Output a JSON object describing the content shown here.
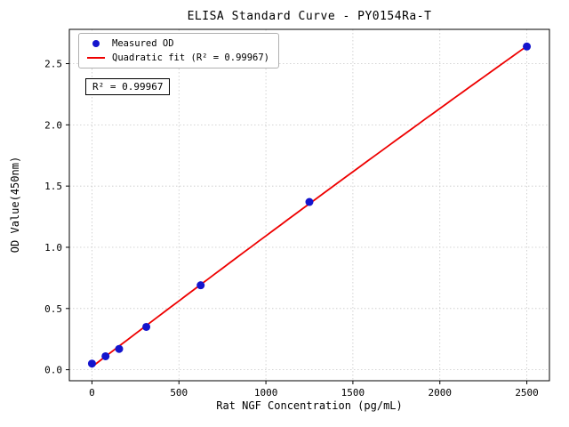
{
  "window": {
    "background": "#ffffff"
  },
  "chart_data": {
    "type": "scatter",
    "title": "ELISA Standard Curve - PY0154Ra-T",
    "xlabel": "Rat NGF Concentration (pg/mL)",
    "ylabel": "OD Value(450nm)",
    "xlim": [
      -130,
      2630
    ],
    "ylim": [
      -0.09,
      2.78
    ],
    "xticks": [
      0,
      500,
      1000,
      1500,
      2000,
      2500
    ],
    "xtick_labels": [
      "0",
      "500",
      "1000",
      "1500",
      "2000",
      "2500"
    ],
    "yticks": [
      0.0,
      0.5,
      1.0,
      1.5,
      2.0,
      2.5
    ],
    "ytick_labels": [
      "0.0",
      "0.5",
      "1.0",
      "1.5",
      "2.0",
      "2.5"
    ],
    "grid": true,
    "grid_color": "#c8c8c8",
    "axis_color": "#000000",
    "legend_position": "upper-left",
    "series": [
      {
        "name": "Measured OD",
        "type": "scatter",
        "color": "#1414cd",
        "x": [
          0,
          78.1,
          156.2,
          312.5,
          625,
          1250,
          2500
        ],
        "y": [
          0.05,
          0.11,
          0.17,
          0.35,
          0.69,
          1.37,
          2.64
        ]
      },
      {
        "name": "Quadratic fit (R² = 0.99967)",
        "type": "fit-line",
        "fit": "quadratic",
        "color": "#ee0000",
        "x_range": [
          0,
          2500
        ]
      }
    ],
    "annotation": "R² = 0.99967",
    "r_squared": 0.99967
  }
}
